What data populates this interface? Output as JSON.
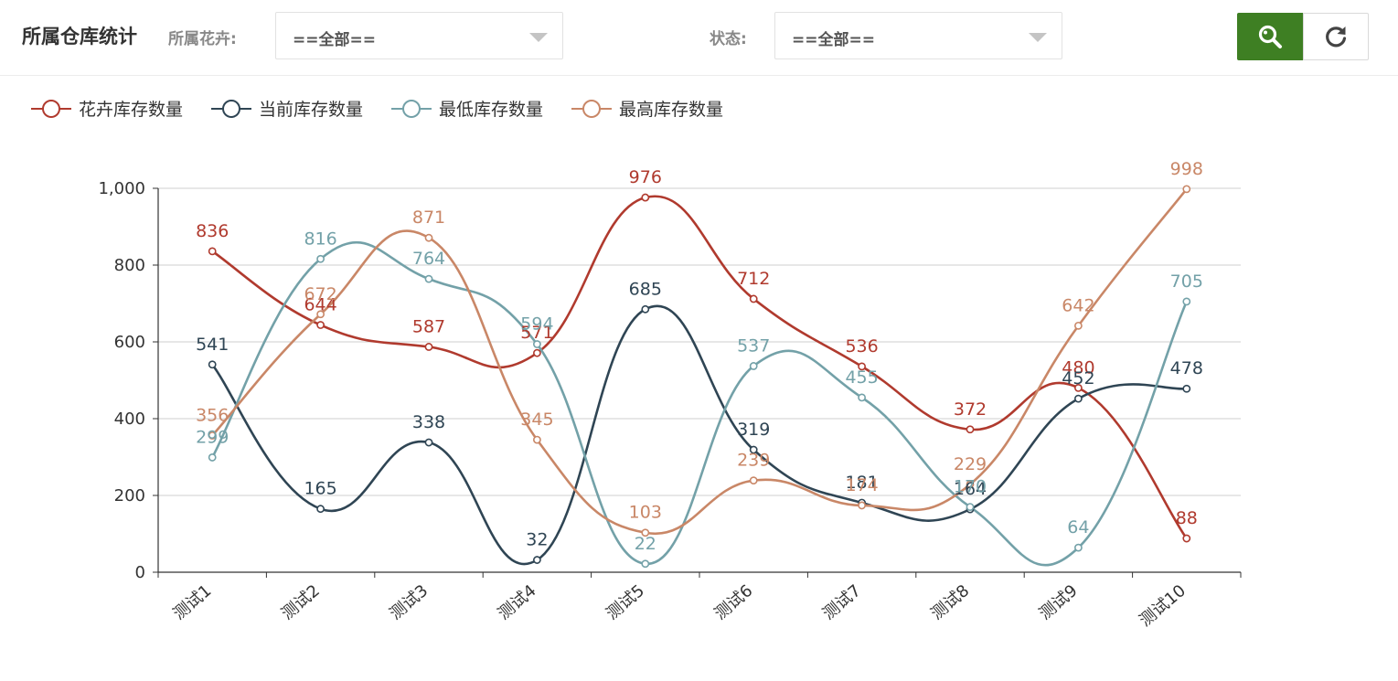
{
  "header": {
    "title": "所属仓库统计",
    "flower_label": "所属花卉:",
    "flower_select_value": "==全部==",
    "status_label": "状态:",
    "status_select_value": "==全部==",
    "search_icon": "search-icon",
    "refresh_icon": "refresh-icon",
    "search_button_color": "#3e7f23"
  },
  "chart_data": {
    "type": "line",
    "smooth": true,
    "categories": [
      "测试1",
      "测试2",
      "测试3",
      "测试4",
      "测试5",
      "测试6",
      "测试7",
      "测试8",
      "测试9",
      "测试10"
    ],
    "series": [
      {
        "name": "花卉库存数量",
        "color": "#b03a2e",
        "values": [
          836,
          644,
          587,
          571,
          976,
          712,
          536,
          372,
          480,
          88
        ]
      },
      {
        "name": "当前库存数量",
        "color": "#2f4554",
        "values": [
          541,
          165,
          338,
          32,
          685,
          319,
          181,
          164,
          452,
          478
        ]
      },
      {
        "name": "最低库存数量",
        "color": "#73a1a8",
        "values": [
          299,
          816,
          764,
          594,
          22,
          537,
          455,
          170,
          64,
          705
        ]
      },
      {
        "name": "最高库存数量",
        "color": "#c98767",
        "values": [
          356,
          672,
          871,
          345,
          103,
          239,
          174,
          229,
          642,
          998
        ]
      }
    ],
    "y_ticks": [
      "0",
      "200",
      "400",
      "600",
      "800",
      "1,000"
    ],
    "ylim": [
      0,
      1000
    ],
    "grid": true,
    "legend_position": "top-left",
    "xlabel": "",
    "ylabel": ""
  }
}
